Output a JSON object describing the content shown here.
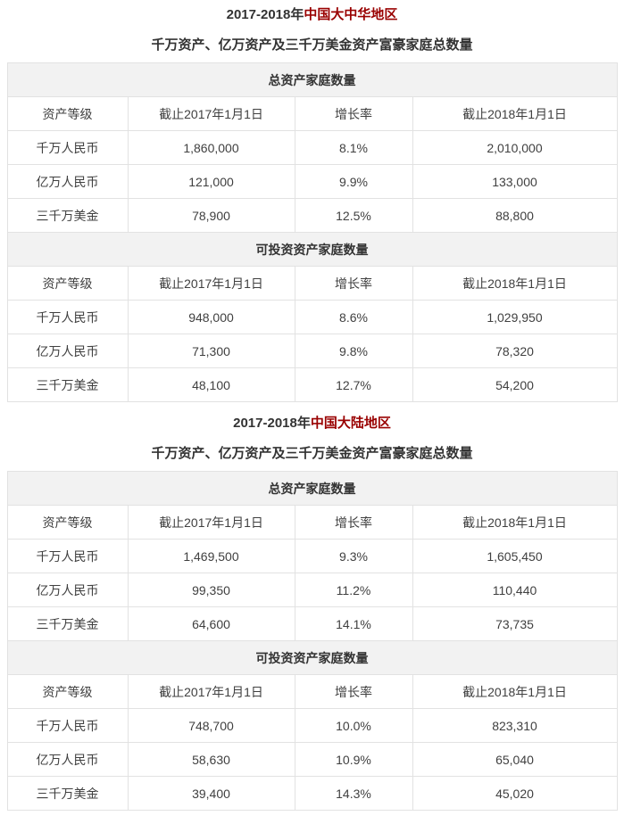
{
  "colors": {
    "title_accent": "#990000",
    "body_text": "#404040",
    "heading_text": "#333333",
    "table_border": "#e2e2e2",
    "band_background": "#f2f2f2",
    "page_background": "#ffffff"
  },
  "sections": [
    {
      "title_year": "2017-2018年",
      "title_region": "中国大中华地区",
      "subtitle": "千万资产、亿万资产及三千万美金资产富豪家庭总数量",
      "tables": [
        {
          "band": "总资产家庭数量",
          "columns": [
            "资产等级",
            "截止2017年1月1日",
            "增长率",
            "截止2018年1月1日"
          ],
          "rows": [
            [
              "千万人民币",
              "1,860,000",
              "8.1%",
              "2,010,000"
            ],
            [
              "亿万人民币",
              "121,000",
              "9.9%",
              "133,000"
            ],
            [
              "三千万美金",
              "78,900",
              "12.5%",
              "88,800"
            ]
          ]
        },
        {
          "band": "可投资资产家庭数量",
          "columns": [
            "资产等级",
            "截止2017年1月1日",
            "增长率",
            "截止2018年1月1日"
          ],
          "rows": [
            [
              "千万人民币",
              "948,000",
              "8.6%",
              "1,029,950"
            ],
            [
              "亿万人民币",
              "71,300",
              "9.8%",
              "78,320"
            ],
            [
              "三千万美金",
              "48,100",
              "12.7%",
              "54,200"
            ]
          ]
        }
      ]
    },
    {
      "title_year": "2017-2018年",
      "title_region": "中国大陆地区",
      "subtitle": "千万资产、亿万资产及三千万美金资产富豪家庭总数量",
      "tables": [
        {
          "band": "总资产家庭数量",
          "columns": [
            "资产等级",
            "截止2017年1月1日",
            "增长率",
            "截止2018年1月1日"
          ],
          "rows": [
            [
              "千万人民币",
              "1,469,500",
              "9.3%",
              "1,605,450"
            ],
            [
              "亿万人民币",
              "99,350",
              "11.2%",
              "110,440"
            ],
            [
              "三千万美金",
              "64,600",
              "14.1%",
              "73,735"
            ]
          ]
        },
        {
          "band": "可投资资产家庭数量",
          "columns": [
            "资产等级",
            "截止2017年1月1日",
            "增长率",
            "截止2018年1月1日"
          ],
          "rows": [
            [
              "千万人民币",
              "748,700",
              "10.0%",
              "823,310"
            ],
            [
              "亿万人民币",
              "58,630",
              "10.9%",
              "65,040"
            ],
            [
              "三千万美金",
              "39,400",
              "14.3%",
              "45,020"
            ]
          ]
        }
      ]
    }
  ]
}
